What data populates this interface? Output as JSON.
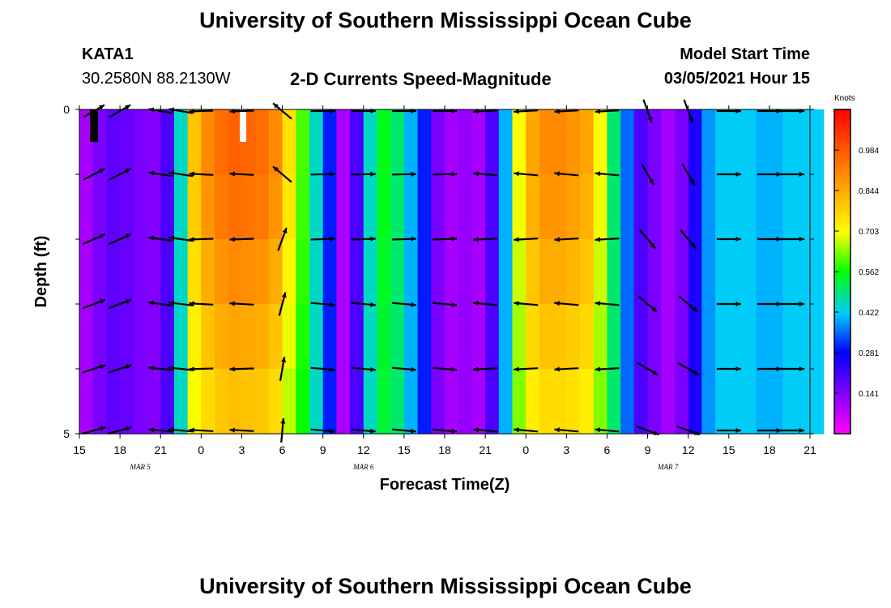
{
  "page": {
    "title_top": "University of Southern Mississippi Ocean Cube",
    "title_bottom": "University of Southern Mississippi Ocean Cube",
    "station": "KATA1",
    "coords": "30.2580N 88.2130W",
    "model_start_label": "Model Start Time",
    "model_start_value": "03/05/2021 Hour 15"
  },
  "chart_data": {
    "type": "heatmap",
    "title": "2-D Currents Speed-Magnitude",
    "xlabel": "Forecast Time(Z)",
    "ylabel": "Depth (ft)",
    "colorbar_label": "Knots",
    "colorbar_ticks": [
      "0.984",
      "0.844",
      "0.703",
      "0.562",
      "0.422",
      "0.281",
      "0.141"
    ],
    "colorbar_values": [
      0.984,
      0.844,
      0.703,
      0.562,
      0.422,
      0.281,
      0.141
    ],
    "colorbar_range": [
      0.0,
      1.125
    ],
    "x_tick_labels": [
      "15",
      "18",
      "21",
      "0",
      "3",
      "6",
      "9",
      "12",
      "15",
      "18",
      "21",
      "0",
      "3",
      "6",
      "9",
      "12",
      "15",
      "18",
      "21"
    ],
    "x_range_hours": [
      0,
      54
    ],
    "date_labels": [
      {
        "text": "MAR 5",
        "hour": 4.5
      },
      {
        "text": "MAR 6",
        "hour": 21
      },
      {
        "text": "MAR 7",
        "hour": 43.5
      }
    ],
    "y_tick_labels": [
      "0",
      "5"
    ],
    "depth_range_ft": [
      0,
      5
    ],
    "depth_levels_ft": [
      0.25,
      1,
      2,
      3,
      4,
      5
    ],
    "speed_by_hour": [
      0.1,
      0.15,
      0.18,
      0.17,
      0.15,
      0.14,
      0.2,
      0.45,
      0.8,
      0.9,
      0.95,
      0.97,
      0.96,
      0.95,
      0.9,
      0.75,
      0.6,
      0.45,
      0.3,
      0.1,
      0.2,
      0.45,
      0.55,
      0.5,
      0.4,
      0.3,
      0.15,
      0.1,
      0.12,
      0.1,
      0.2,
      0.4,
      0.7,
      0.85,
      0.9,
      0.9,
      0.88,
      0.85,
      0.7,
      0.5,
      0.35,
      0.2,
      0.15,
      0.1,
      0.15,
      0.25,
      0.38,
      0.42,
      0.42,
      0.42,
      0.4,
      0.4,
      0.42,
      0.42,
      0.42
    ],
    "arrow_times_hours": [
      0,
      3,
      6,
      7.5,
      9,
      12,
      15,
      18,
      21,
      24,
      27,
      30,
      33,
      36,
      39,
      42,
      45,
      48,
      51,
      54
    ],
    "arrow_depths_ft": [
      0,
      1,
      2,
      3,
      4,
      5
    ]
  }
}
